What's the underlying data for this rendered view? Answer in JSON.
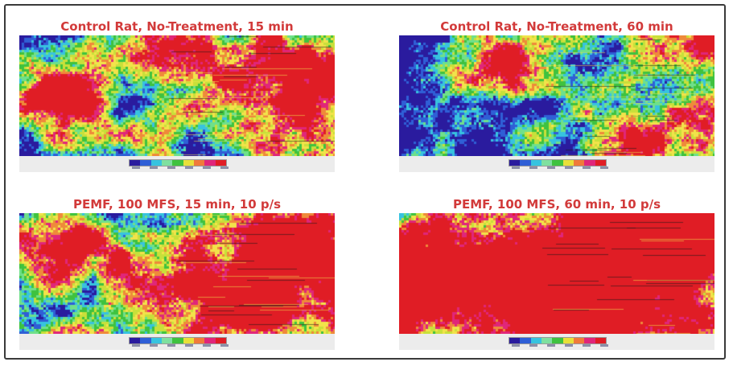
{
  "figure": {
    "panels": [
      {
        "title": "Control Rat, No-Treatment, 15 min",
        "seed": 11,
        "hot": 0.3,
        "cold": 0.25,
        "grad": [
          -0.5,
          0.6
        ],
        "blobs": [
          [
            0.1,
            0.48,
            0.055,
            1.2
          ],
          [
            0.8,
            0.35,
            0.18,
            0.9
          ],
          [
            0.35,
            0.12,
            0.1,
            0.7
          ]
        ]
      },
      {
        "title": "Control Rat, No-Treatment, 60 min",
        "seed": 23,
        "hot": 0.12,
        "cold": 0.42,
        "grad": [
          -0.6,
          0.4
        ],
        "blobs": [
          [
            0.3,
            0.2,
            0.08,
            1.1
          ],
          [
            0.95,
            0.1,
            0.08,
            0.8
          ],
          [
            0.78,
            0.85,
            0.1,
            0.9
          ]
        ]
      },
      {
        "title": "PEMF, 100 MFS, 15 min, 10 p/s",
        "seed": 37,
        "hot": 0.42,
        "cold": 0.12,
        "grad": [
          -0.3,
          0.5
        ],
        "blobs": [
          [
            0.12,
            0.3,
            0.1,
            1.0
          ],
          [
            0.7,
            0.65,
            0.15,
            1.0
          ],
          [
            0.88,
            0.2,
            0.1,
            0.8
          ]
        ]
      },
      {
        "title": "PEMF, 100 MFS, 60 min, 10 p/s",
        "seed": 51,
        "hot": 0.58,
        "cold": 0.05,
        "grad": [
          -0.1,
          0.4
        ],
        "blobs": [
          [
            0.1,
            0.55,
            0.15,
            1.2
          ],
          [
            0.6,
            0.7,
            0.25,
            1.1
          ],
          [
            0.75,
            0.1,
            0.2,
            0.9
          ]
        ]
      }
    ],
    "colors": {
      "title": "#d23a3a",
      "frame": "#3a3a3a",
      "palette": [
        "#2a1b9e",
        "#2f5fd6",
        "#37c3df",
        "#6fe08a",
        "#3fc23f",
        "#c8e03a",
        "#f2e34a",
        "#ef8a3a",
        "#e0267a",
        "#e01d25"
      ]
    },
    "legend": {
      "colors": [
        "#2a1b9e",
        "#2f5fd6",
        "#37c3df",
        "#7fe0a0",
        "#3fc23f",
        "#e8e03a",
        "#f07a3a",
        "#e0267a",
        "#e01d25"
      ]
    }
  }
}
